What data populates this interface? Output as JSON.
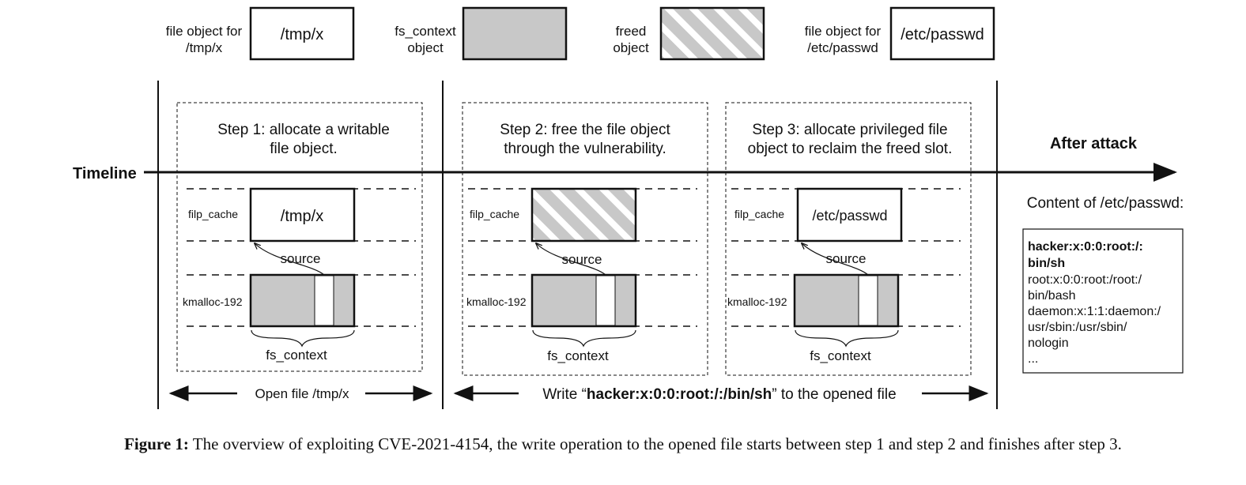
{
  "legend": {
    "file_tmp_label_1": "file object for",
    "file_tmp_label_2": "/tmp/x",
    "file_tmp_box": "/tmp/x",
    "fs_context_label_1": "fs_context",
    "fs_context_label_2": "object",
    "freed_label_1": "freed",
    "freed_label_2": "object",
    "file_passwd_label_1": "file object for",
    "file_passwd_label_2": "/etc/passwd",
    "file_passwd_box": "/etc/passwd"
  },
  "timeline_label": "Timeline",
  "step1": {
    "title_1": "Step 1: allocate a writable",
    "title_2": "file object.",
    "filp_cache": "filp_cache",
    "file_box": "/tmp/x",
    "source": "source",
    "kmalloc": "kmalloc-192",
    "fs_context": "fs_context"
  },
  "step2": {
    "title_1": "Step 2: free the file object",
    "title_2": "through the vulnerability.",
    "filp_cache": "filp_cache",
    "source": "source",
    "kmalloc": "kmalloc-192",
    "fs_context": "fs_context"
  },
  "step3": {
    "title_1": "Step 3: allocate privileged file",
    "title_2": "object to reclaim the freed slot.",
    "filp_cache": "filp_cache",
    "file_box": "/etc/passwd",
    "source": "source",
    "kmalloc": "kmalloc-192",
    "fs_context": "fs_context"
  },
  "after": {
    "title": "After attack",
    "content_label": "Content of /etc/passwd:",
    "lines_bold": [
      "hacker:x:0:0:root:/:",
      "bin/sh"
    ],
    "lines": [
      "root:x:0:0:root:/root:/",
      "bin/bash",
      "daemon:x:1:1:daemon:/",
      "usr/sbin:/usr/sbin/",
      "nologin",
      "..."
    ]
  },
  "bottom": {
    "open_file": "Open file /tmp/x",
    "write_prefix": "Write “",
    "write_bold": "hacker:x:0:0:root:/:/bin/sh",
    "write_suffix": "” to the opened file"
  },
  "caption": {
    "label": "Figure 1:",
    "text": " The overview of exploiting CVE-2021-4154, the write operation to the opened file starts between step 1 and step 2 and finishes after step 3."
  }
}
